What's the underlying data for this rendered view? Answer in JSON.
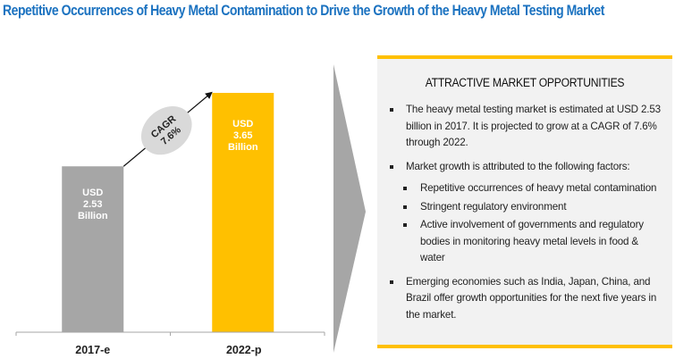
{
  "title": "Repetitive Occurrences of Heavy Metal Contamination to Drive the Growth of the Heavy Metal Testing Market",
  "chart_data": {
    "type": "bar",
    "title": "Repetitive Occurrences of Heavy Metal Contamination to Drive the Growth of the Heavy Metal Testing Market",
    "categories": [
      "2017-e",
      "2022-p"
    ],
    "values": [
      2.53,
      3.65
    ],
    "unit": "USD Billion",
    "bar_labels": [
      [
        "USD",
        "2.53",
        "Billion"
      ],
      [
        "USD",
        "3.65",
        "Billion"
      ]
    ],
    "colors": [
      "#a6a6a6",
      "#ffc000"
    ],
    "annotation": {
      "line1": "CAGR",
      "line2": "7.6%",
      "value": 7.6
    },
    "xlabel": "",
    "ylabel": "",
    "ylim": [
      0,
      3.65
    ],
    "grid": false,
    "legend": "none"
  },
  "panel": {
    "title": "ATTRACTIVE MARKET OPPORTUNITIES",
    "accent_color": "#ffc000",
    "bullets": [
      {
        "text": "The heavy metal testing market is estimated at USD 2.53 billion in 2017. It is projected to grow at a CAGR of 7.6% through 2022."
      },
      {
        "text": "Market growth is attributed to the following factors:",
        "sub": [
          "Repetitive occurrences of heavy metal contamination",
          "Stringent regulatory environment",
          "Active involvement of governments and regulatory bodies in monitoring heavy metal levels in food & water"
        ]
      },
      {
        "text": "Emerging economies such as India, Japan, China, and Brazil offer growth opportunities for the next five years in the market."
      }
    ]
  }
}
